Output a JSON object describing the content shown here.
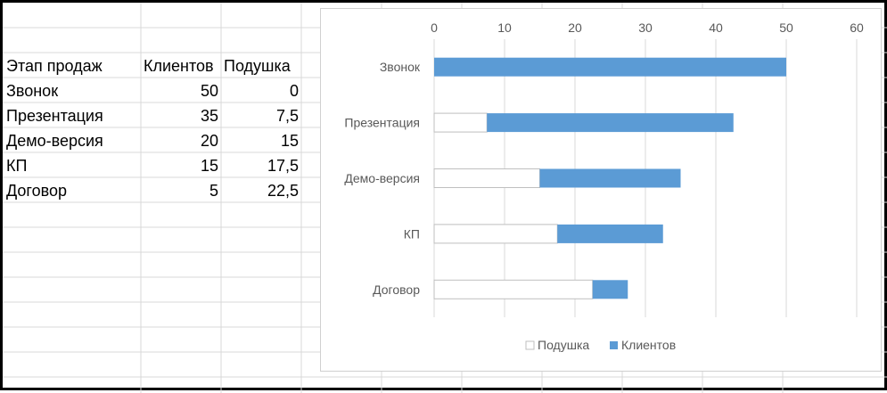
{
  "spreadsheet": {
    "headers": [
      "Этап продаж",
      "Клиентов",
      "Подушка"
    ],
    "rows": [
      [
        "Звонок",
        "50",
        "0"
      ],
      [
        "Презентация",
        "35",
        "7,5"
      ],
      [
        "Демо-версия",
        "20",
        "15"
      ],
      [
        "КП",
        "15",
        "17,5"
      ],
      [
        "Договор",
        "5",
        "22,5"
      ]
    ]
  },
  "chart_data": {
    "type": "bar",
    "orientation": "horizontal",
    "stacked": true,
    "categories": [
      "Звонок",
      "Презентация",
      "Демо-версия",
      "КП",
      "Договор"
    ],
    "series": [
      {
        "name": "Подушка",
        "values": [
          0,
          7.5,
          15,
          17.5,
          22.5
        ],
        "color": "#ffffff",
        "stroke": "#bfbfbf"
      },
      {
        "name": "Клиентов",
        "values": [
          50,
          35,
          20,
          15,
          5
        ],
        "color": "#5b9bd5"
      }
    ],
    "xlim": [
      0,
      60
    ],
    "xticks": [
      0,
      10,
      20,
      30,
      40,
      50,
      60
    ],
    "x_axis_position": "top",
    "grid": true,
    "legend": "bottom"
  }
}
